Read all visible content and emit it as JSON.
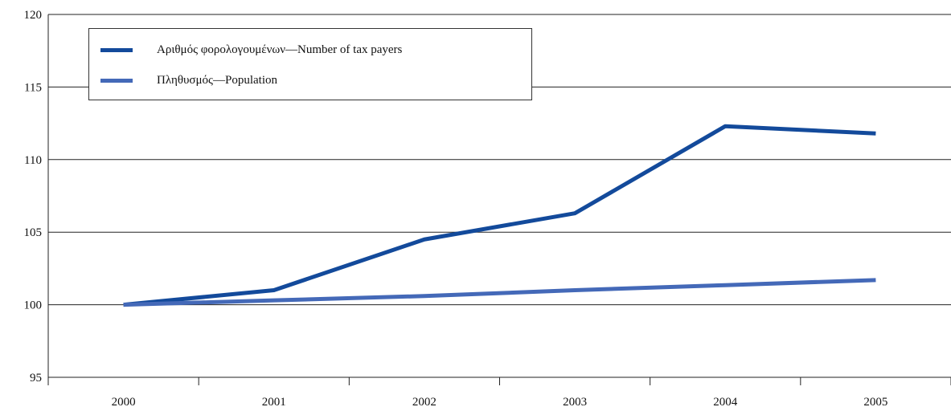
{
  "chart_data": {
    "type": "line",
    "title": "",
    "xlabel": "",
    "ylabel": "",
    "categories": [
      "2000",
      "2001",
      "2002",
      "2003",
      "2004",
      "2005"
    ],
    "y_ticks": [
      "95",
      "100",
      "105",
      "110",
      "115",
      "120"
    ],
    "ylim": [
      95,
      120
    ],
    "grid": "horizontal",
    "legend_placement": "top-left",
    "series": [
      {
        "name": "Αριθμός φορολογουμένων—Number of tax payers",
        "values": [
          100,
          101,
          104.5,
          106.3,
          112.3,
          111.8
        ],
        "color": "#134a9b"
      },
      {
        "name": "Πληθυσμός—Population",
        "values": [
          100,
          100.3,
          100.6,
          101.0,
          101.35,
          101.7
        ],
        "color": "#4469b8"
      }
    ]
  }
}
